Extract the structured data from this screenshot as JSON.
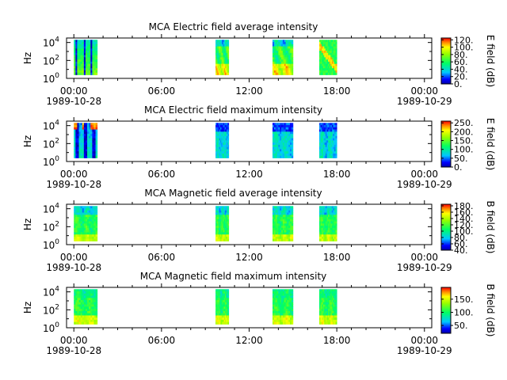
{
  "chart_data": [
    {
      "type": "heatmap",
      "title": "MCA  Electric field average intensity",
      "ylabel": "Hz",
      "colorbar_label": "E field (dB)",
      "colorbar_ticks": [
        "0.",
        "20.",
        "40.",
        "60.",
        "80.",
        "100.",
        "120."
      ],
      "colorbar_range": [
        0,
        125
      ],
      "y_ticks": [
        {
          "base": "10",
          "exp": "0"
        },
        {
          "base": "10",
          "exp": "2"
        },
        {
          "base": "10",
          "exp": "4"
        }
      ],
      "y_log_range": [
        0,
        4.5
      ],
      "x_ticks": [
        "00:00",
        "06:00",
        "12:00",
        "18:00",
        "00:00"
      ],
      "x_dates": [
        "1989-10-28",
        "1989-10-29"
      ],
      "x_range_hours": [
        -0.5,
        24.5
      ],
      "segments": [
        {
          "start_hour": 0.0,
          "end_hour": 1.6,
          "pattern": "dark-blue",
          "base_level": 55
        },
        {
          "start_hour": 9.7,
          "end_hour": 10.6,
          "pattern": "warm-low",
          "base_level": 60
        },
        {
          "start_hour": 13.6,
          "end_hour": 15.0,
          "pattern": "warm-low",
          "base_level": 65
        },
        {
          "start_hour": 16.8,
          "end_hour": 18.0,
          "pattern": "warm-stripe",
          "base_level": 70
        }
      ]
    },
    {
      "type": "heatmap",
      "title": "MCA  Electric field maximum intensity",
      "ylabel": "Hz",
      "colorbar_label": "E field (dB)",
      "colorbar_ticks": [
        "0.",
        "50.",
        "100.",
        "150.",
        "200.",
        "250."
      ],
      "colorbar_range": [
        0,
        260
      ],
      "y_ticks": [
        {
          "base": "10",
          "exp": "0"
        },
        {
          "base": "10",
          "exp": "2"
        },
        {
          "base": "10",
          "exp": "4"
        }
      ],
      "y_log_range": [
        0,
        4.5
      ],
      "x_ticks": [
        "00:00",
        "06:00",
        "12:00",
        "18:00",
        "00:00"
      ],
      "x_dates": [
        "1989-10-28",
        "1989-10-29"
      ],
      "x_range_hours": [
        -0.5,
        24.5
      ],
      "segments": [
        {
          "start_hour": 0.0,
          "end_hour": 1.6,
          "pattern": "dark-blue-spike",
          "base_level": 70
        },
        {
          "start_hour": 9.7,
          "end_hour": 10.6,
          "pattern": "cool",
          "base_level": 85
        },
        {
          "start_hour": 13.6,
          "end_hour": 15.0,
          "pattern": "cool",
          "base_level": 80
        },
        {
          "start_hour": 16.8,
          "end_hour": 18.0,
          "pattern": "cool",
          "base_level": 90
        }
      ]
    },
    {
      "type": "heatmap",
      "title": "MCA  Magnetic field average intensity",
      "ylabel": "Hz",
      "colorbar_label": "B field (dB)",
      "colorbar_ticks": [
        "40.",
        "60.",
        "80.",
        "100.",
        "120.",
        "140.",
        "160.",
        "180."
      ],
      "colorbar_range": [
        40,
        185
      ],
      "y_ticks": [
        {
          "base": "10",
          "exp": "0"
        },
        {
          "base": "10",
          "exp": "2"
        },
        {
          "base": "10",
          "exp": "4"
        }
      ],
      "y_log_range": [
        0,
        4.5
      ],
      "x_ticks": [
        "00:00",
        "06:00",
        "12:00",
        "18:00",
        "00:00"
      ],
      "x_dates": [
        "1989-10-28",
        "1989-10-29"
      ],
      "x_range_hours": [
        -0.5,
        24.5
      ],
      "segments": [
        {
          "start_hour": 0.0,
          "end_hour": 1.6,
          "pattern": "mag",
          "base_level": 110
        },
        {
          "start_hour": 9.7,
          "end_hour": 10.6,
          "pattern": "mag",
          "base_level": 115
        },
        {
          "start_hour": 13.6,
          "end_hour": 15.0,
          "pattern": "mag",
          "base_level": 118
        },
        {
          "start_hour": 16.8,
          "end_hour": 18.0,
          "pattern": "mag",
          "base_level": 118
        }
      ]
    },
    {
      "type": "heatmap",
      "title": "MCA  Magnetic field maximum intensity",
      "ylabel": "Hz",
      "colorbar_label": "B field (dB)",
      "colorbar_ticks": [
        "50.",
        "100.",
        "150."
      ],
      "colorbar_range": [
        20,
        195
      ],
      "y_ticks": [
        {
          "base": "10",
          "exp": "0"
        },
        {
          "base": "10",
          "exp": "2"
        },
        {
          "base": "10",
          "exp": "4"
        }
      ],
      "y_log_range": [
        0,
        4.5
      ],
      "x_ticks": [
        "00:00",
        "06:00",
        "12:00",
        "18:00",
        "00:00"
      ],
      "x_dates": [
        "1989-10-28",
        "1989-10-29"
      ],
      "x_range_hours": [
        -0.5,
        24.5
      ],
      "segments": [
        {
          "start_hour": 0.0,
          "end_hour": 1.6,
          "pattern": "mag-max",
          "base_level": 95
        },
        {
          "start_hour": 9.7,
          "end_hour": 10.6,
          "pattern": "mag-max",
          "base_level": 100
        },
        {
          "start_hour": 13.6,
          "end_hour": 15.0,
          "pattern": "mag-max",
          "base_level": 105
        },
        {
          "start_hour": 16.8,
          "end_hour": 18.0,
          "pattern": "mag-max",
          "base_level": 105
        }
      ]
    }
  ]
}
